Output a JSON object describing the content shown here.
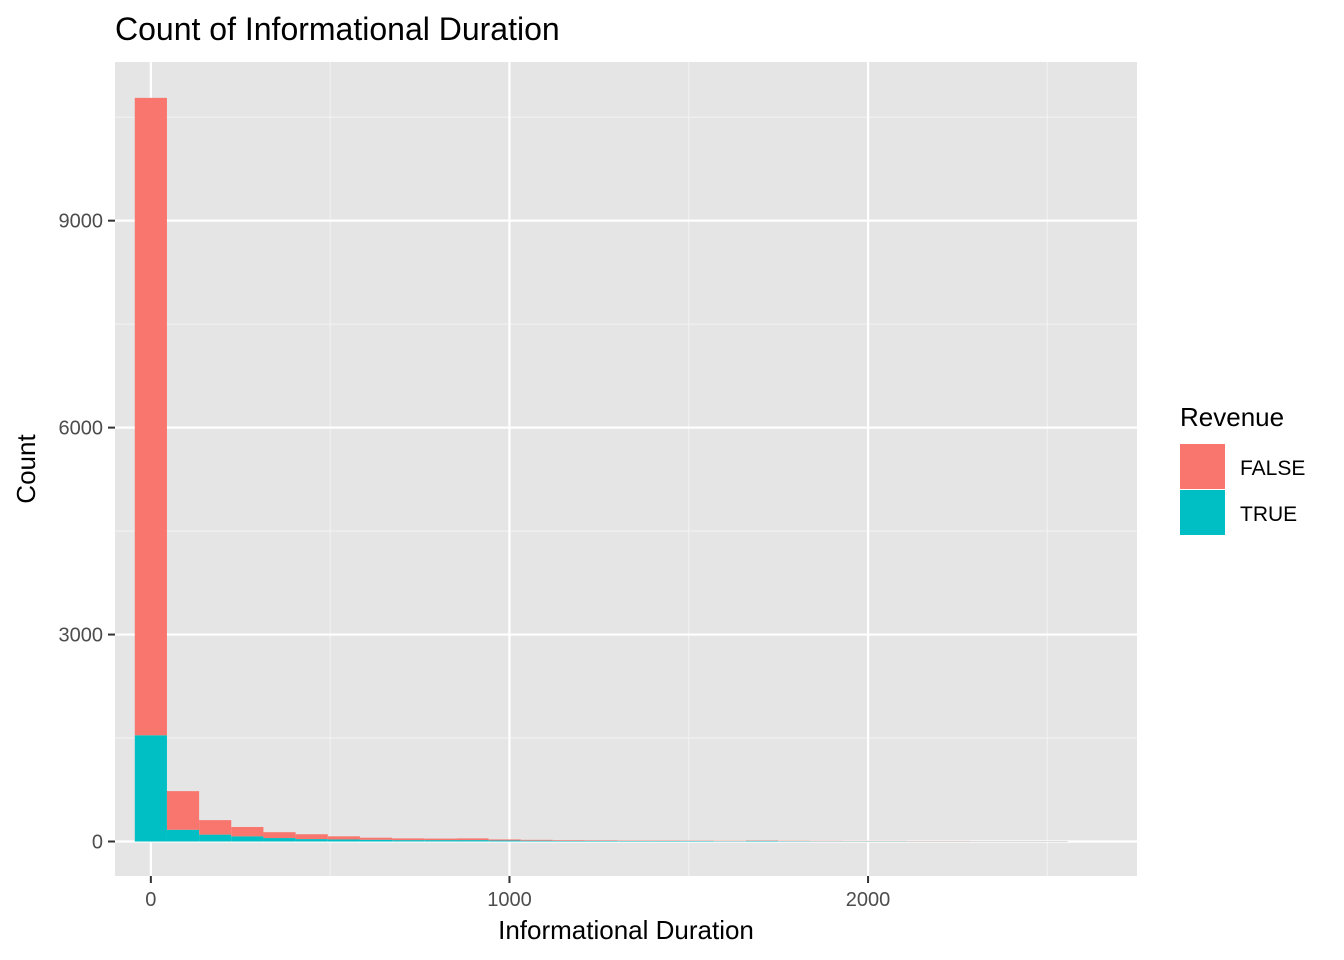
{
  "chart_data": {
    "type": "bar",
    "subtype": "stacked-histogram",
    "title": "Count of Informational Duration",
    "xlabel": "Informational Duration",
    "ylabel": "Count",
    "xlim": [
      -100,
      2750
    ],
    "ylim": [
      -500,
      11300
    ],
    "x_ticks": [
      0,
      1000,
      2000
    ],
    "x_tick_labels": [
      "0",
      "1000",
      "2000"
    ],
    "y_ticks": [
      0,
      3000,
      6000,
      9000
    ],
    "y_tick_labels": [
      "0",
      "3000",
      "6000",
      "9000"
    ],
    "grid": true,
    "legend": {
      "title": "Revenue",
      "position": "right",
      "entries": [
        {
          "label": "FALSE",
          "color": "#F8766D"
        },
        {
          "label": "TRUE",
          "color": "#00BFC4"
        }
      ]
    },
    "bin_width": 89.7,
    "bin_centers": [
      0,
      89.7,
      179.4,
      269.1,
      358.8,
      448.5,
      538.2,
      627.9,
      717.6,
      807.3,
      897.0,
      986.7,
      1076.4,
      1166.1,
      1255.8,
      1345.5,
      1435.2,
      1524.9,
      1614.6,
      1704.3,
      1794.0,
      1883.7,
      1973.4,
      2063.1,
      2152.8,
      2242.5,
      2332.2,
      2421.9,
      2511.6
    ],
    "series": [
      {
        "name": "TRUE",
        "color": "#00BFC4",
        "values": [
          1540,
          170,
          100,
          75,
          50,
          35,
          30,
          25,
          20,
          20,
          20,
          15,
          12,
          10,
          10,
          8,
          8,
          8,
          6,
          10,
          6,
          5,
          5,
          5,
          4,
          4,
          3,
          3,
          3
        ]
      },
      {
        "name": "FALSE",
        "color": "#F8766D",
        "values": [
          9240,
          560,
          210,
          135,
          85,
          70,
          45,
          30,
          25,
          22,
          25,
          15,
          12,
          10,
          8,
          6,
          6,
          5,
          5,
          6,
          5,
          5,
          4,
          4,
          4,
          4,
          3,
          3,
          3
        ]
      }
    ],
    "colors": {
      "panel_background": "#E5E5E5",
      "grid_major": "#FFFFFF",
      "grid_minor": "#F2F2F2",
      "tick_text": "#4D4D4D"
    }
  }
}
